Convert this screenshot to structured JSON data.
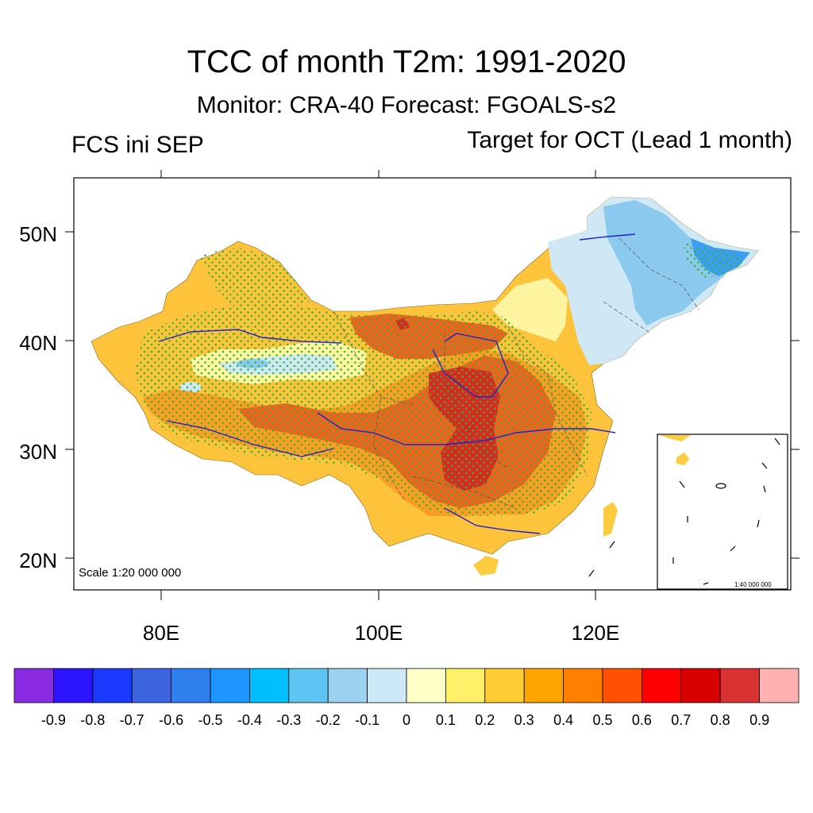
{
  "title": "TCC of month T2m: 1991-2020",
  "subtitle": "Monitor: CRA-40   Forecast: FGOALS-s2",
  "left_label": "FCS ini SEP",
  "right_label": "Target for OCT (Lead 1 month)",
  "map": {
    "scale_main": "Scale 1:20 000 000",
    "scale_inset": "1:40 000 000",
    "lat_labels": [
      "50N",
      "40N",
      "30N",
      "20N"
    ],
    "lon_labels": [
      "80E",
      "100E",
      "120E"
    ],
    "colors": {
      "warm_strong": "#d62020",
      "warm_mid": "#f05a1e",
      "warm_light": "#fb9a22",
      "warm_pale": "#fdcb3e",
      "yellow": "#fff68f",
      "cool_pale": "#cfe8f5",
      "cool_mid": "#8cc9ee",
      "cool_strong": "#3c9ef0",
      "stipple": "#2eb82e",
      "river": "#2222cc"
    }
  },
  "colorbar": {
    "tick_labels": [
      "-0.9",
      "-0.8",
      "-0.7",
      "-0.6",
      "-0.5",
      "-0.4",
      "-0.3",
      "-0.2",
      "-0.1",
      "0",
      "0.1",
      "0.2",
      "0.3",
      "0.4",
      "0.5",
      "0.6",
      "0.7",
      "0.8",
      "0.9"
    ],
    "colors": [
      "#8a2be2",
      "#2d14ff",
      "#1a3aff",
      "#3c64e0",
      "#2f7fee",
      "#1e96ff",
      "#00bfff",
      "#5fc4f2",
      "#9cd2f0",
      "#cde9f7",
      "#ffffc8",
      "#fff06a",
      "#ffcc33",
      "#ffa500",
      "#ff8000",
      "#ff4f00",
      "#ff0000",
      "#d80000",
      "#da3232",
      "#ffb0b0"
    ]
  }
}
